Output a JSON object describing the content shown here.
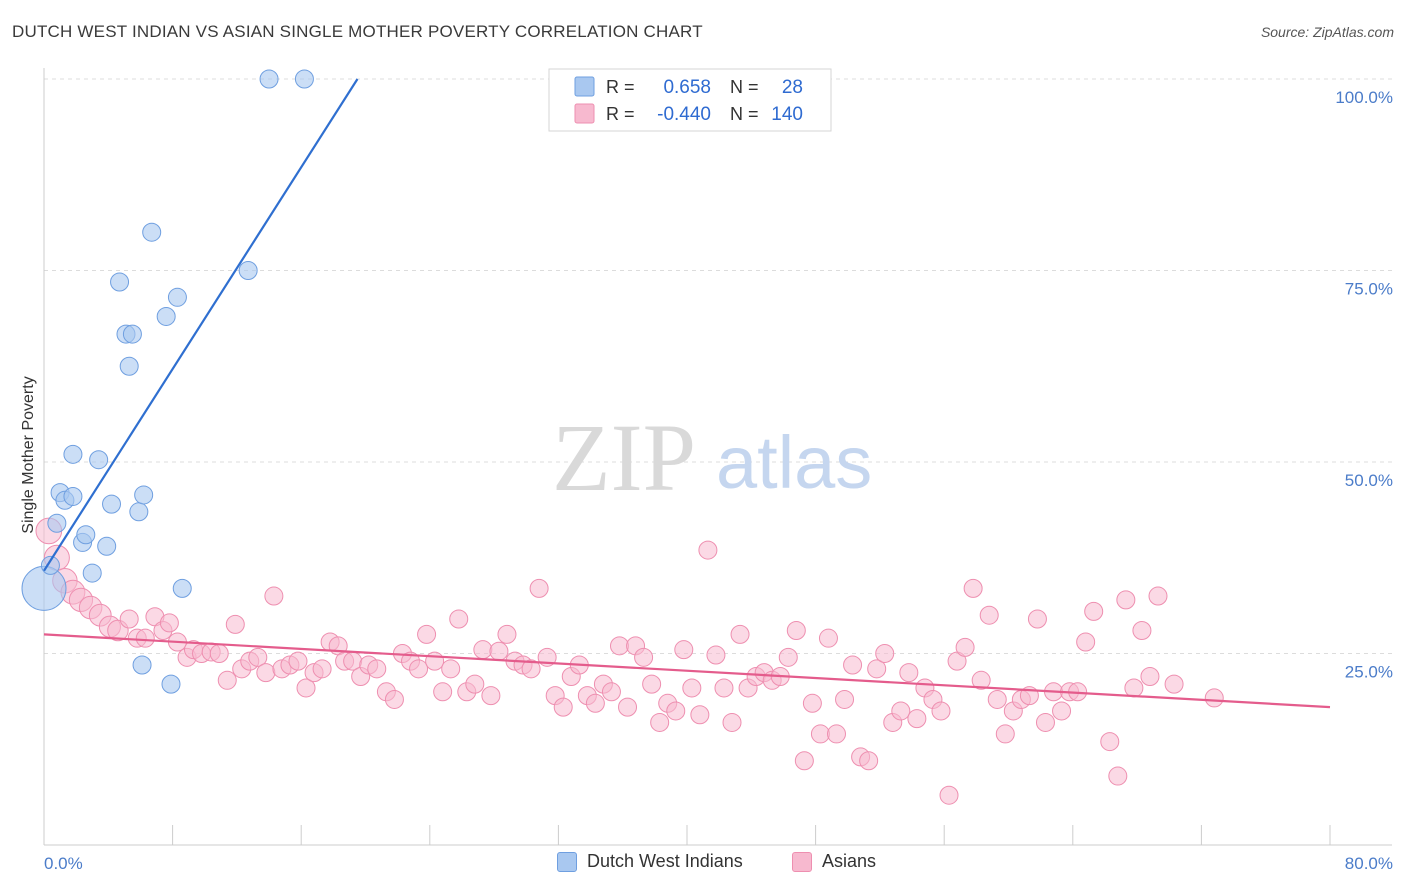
{
  "header": {
    "title": "DUTCH WEST INDIAN VS ASIAN SINGLE MOTHER POVERTY CORRELATION CHART",
    "source": "Source: ZipAtlas.com"
  },
  "watermark": {
    "zip": "ZIP",
    "atlas": "atlas"
  },
  "legend": {
    "rows": [
      {
        "r_label": "R = ",
        "r_value": "0.658",
        "n_label": "N = ",
        "n_value": "28",
        "color": "#a9c8f0",
        "stroke": "#6f9fe0"
      },
      {
        "r_label": "R = ",
        "r_value": "-0.440",
        "n_label": "N = ",
        "n_value": "140",
        "color": "#f7b9cf",
        "stroke": "#ee8fb0"
      }
    ]
  },
  "bottom_legend": {
    "items": [
      {
        "label": "Dutch West Indians",
        "color": "#a9c8f0",
        "stroke": "#6f9fe0"
      },
      {
        "label": "Asians",
        "color": "#f7b9cf",
        "stroke": "#ee8fb0"
      }
    ]
  },
  "chart_data": {
    "type": "scatter",
    "title": "DUTCH WEST INDIAN VS ASIAN SINGLE MOTHER POVERTY CORRELATION CHART",
    "xlabel": "",
    "ylabel": "Single Mother Poverty",
    "xlim": [
      0,
      80
    ],
    "ylim": [
      0,
      100
    ],
    "x_ticks": [
      0,
      80
    ],
    "x_tick_labels": [
      "0.0%",
      "80.0%"
    ],
    "y_ticks": [
      25,
      50,
      75,
      100
    ],
    "y_tick_labels": [
      "25.0%",
      "50.0%",
      "75.0%",
      "100.0%"
    ],
    "grid": "horizontal dashed",
    "legend_position": "top-center",
    "series": [
      {
        "name": "Dutch West Indians",
        "color": "#a9c8f0",
        "stroke": "#6f9fe0",
        "line_color": "#2f6fd0",
        "trend": {
          "x": [
            0,
            19.5
          ],
          "y": [
            35.8,
            100
          ]
        },
        "points": [
          [
            0,
            33.5
          ],
          [
            0.4,
            36.5
          ],
          [
            0.8,
            42
          ],
          [
            1,
            46
          ],
          [
            1.3,
            45
          ],
          [
            1.8,
            45.5
          ],
          [
            1.8,
            51
          ],
          [
            2.4,
            39.5
          ],
          [
            2.6,
            40.5
          ],
          [
            3,
            35.5
          ],
          [
            3.4,
            50.3
          ],
          [
            3.9,
            39
          ],
          [
            4.2,
            44.5
          ],
          [
            4.7,
            73.5
          ],
          [
            5.1,
            66.7
          ],
          [
            5.3,
            62.5
          ],
          [
            5.5,
            66.7
          ],
          [
            5.9,
            43.5
          ],
          [
            6.1,
            23.5
          ],
          [
            6.2,
            45.7
          ],
          [
            6.7,
            80
          ],
          [
            7.6,
            69
          ],
          [
            7.9,
            21
          ],
          [
            8.3,
            71.5
          ],
          [
            8.6,
            33.5
          ],
          [
            12.7,
            75
          ],
          [
            14,
            100
          ],
          [
            16.2,
            100
          ]
        ],
        "sizes": [
          22,
          9,
          9,
          9,
          9,
          9,
          9,
          9,
          9,
          9,
          9,
          9,
          9,
          9,
          9,
          9,
          9,
          9,
          9,
          9,
          9,
          9,
          9,
          9,
          9,
          9,
          9,
          9
        ]
      },
      {
        "name": "Asians",
        "color": "#f7b9cf",
        "stroke": "#ee8fb0",
        "line_color": "#e45c8c",
        "trend": {
          "x": [
            0,
            80
          ],
          "y": [
            27.5,
            18
          ]
        },
        "points": [
          [
            0.3,
            41
          ],
          [
            0.8,
            37.5
          ],
          [
            1.3,
            34.5
          ],
          [
            1.8,
            33
          ],
          [
            2.3,
            32
          ],
          [
            2.9,
            31
          ],
          [
            3.5,
            30
          ],
          [
            4.1,
            28.5
          ],
          [
            4.6,
            28
          ],
          [
            5.3,
            29.5
          ],
          [
            5.8,
            27
          ],
          [
            6.3,
            27
          ],
          [
            6.9,
            29.8
          ],
          [
            7.4,
            28
          ],
          [
            7.8,
            29
          ],
          [
            8.3,
            26.5
          ],
          [
            8.9,
            24.5
          ],
          [
            9.3,
            25.5
          ],
          [
            9.8,
            25
          ],
          [
            10.4,
            25.2
          ],
          [
            10.9,
            25
          ],
          [
            11.4,
            21.5
          ],
          [
            11.9,
            28.8
          ],
          [
            12.3,
            23
          ],
          [
            12.8,
            24
          ],
          [
            13.3,
            24.5
          ],
          [
            13.8,
            22.5
          ],
          [
            14.3,
            32.5
          ],
          [
            14.8,
            23
          ],
          [
            15.3,
            23.5
          ],
          [
            15.8,
            24
          ],
          [
            16.3,
            20.5
          ],
          [
            16.8,
            22.5
          ],
          [
            17.3,
            23
          ],
          [
            17.8,
            26.5
          ],
          [
            18.3,
            26
          ],
          [
            18.7,
            24
          ],
          [
            19.2,
            24
          ],
          [
            19.7,
            22
          ],
          [
            20.2,
            23.5
          ],
          [
            20.7,
            23
          ],
          [
            21.3,
            20
          ],
          [
            21.8,
            19
          ],
          [
            22.3,
            25
          ],
          [
            22.8,
            24
          ],
          [
            23.3,
            23
          ],
          [
            23.8,
            27.5
          ],
          [
            24.3,
            24
          ],
          [
            24.8,
            20
          ],
          [
            25.3,
            23
          ],
          [
            25.8,
            29.5
          ],
          [
            26.3,
            20
          ],
          [
            26.8,
            21
          ],
          [
            27.3,
            25.5
          ],
          [
            27.8,
            19.5
          ],
          [
            28.3,
            25.3
          ],
          [
            28.8,
            27.5
          ],
          [
            29.3,
            24
          ],
          [
            29.8,
            23.5
          ],
          [
            30.3,
            23
          ],
          [
            30.8,
            33.5
          ],
          [
            31.3,
            24.5
          ],
          [
            31.8,
            19.5
          ],
          [
            32.3,
            18
          ],
          [
            32.8,
            22
          ],
          [
            33.3,
            23.5
          ],
          [
            33.8,
            19.5
          ],
          [
            34.3,
            18.5
          ],
          [
            34.8,
            21
          ],
          [
            35.3,
            20
          ],
          [
            35.8,
            26
          ],
          [
            36.3,
            18
          ],
          [
            36.8,
            26
          ],
          [
            37.3,
            24.5
          ],
          [
            37.8,
            21
          ],
          [
            38.3,
            16
          ],
          [
            38.8,
            18.5
          ],
          [
            39.3,
            17.5
          ],
          [
            39.8,
            25.5
          ],
          [
            40.3,
            20.5
          ],
          [
            40.8,
            17
          ],
          [
            41.3,
            38.5
          ],
          [
            41.8,
            24.8
          ],
          [
            42.3,
            20.5
          ],
          [
            42.8,
            16
          ],
          [
            43.3,
            27.5
          ],
          [
            43.8,
            20.5
          ],
          [
            44.3,
            22
          ],
          [
            44.8,
            22.5
          ],
          [
            45.3,
            21.5
          ],
          [
            45.8,
            22
          ],
          [
            46.3,
            24.5
          ],
          [
            46.8,
            28
          ],
          [
            47.3,
            11
          ],
          [
            47.8,
            18.5
          ],
          [
            48.3,
            14.5
          ],
          [
            48.8,
            27
          ],
          [
            49.3,
            14.5
          ],
          [
            49.8,
            19
          ],
          [
            50.3,
            23.5
          ],
          [
            50.8,
            11.5
          ],
          [
            51.3,
            11
          ],
          [
            51.8,
            23
          ],
          [
            52.3,
            25
          ],
          [
            52.8,
            16
          ],
          [
            53.3,
            17.5
          ],
          [
            53.8,
            22.5
          ],
          [
            54.3,
            16.5
          ],
          [
            54.8,
            20.5
          ],
          [
            55.3,
            19
          ],
          [
            55.8,
            17.5
          ],
          [
            56.3,
            6.5
          ],
          [
            56.8,
            24
          ],
          [
            57.3,
            25.8
          ],
          [
            57.8,
            33.5
          ],
          [
            58.3,
            21.5
          ],
          [
            58.8,
            30
          ],
          [
            59.3,
            19
          ],
          [
            59.8,
            14.5
          ],
          [
            60.3,
            17.5
          ],
          [
            60.8,
            19
          ],
          [
            61.3,
            19.5
          ],
          [
            61.8,
            29.5
          ],
          [
            62.3,
            16
          ],
          [
            62.8,
            20
          ],
          [
            63.3,
            17.5
          ],
          [
            63.8,
            20
          ],
          [
            64.3,
            20
          ],
          [
            64.8,
            26.5
          ],
          [
            65.3,
            30.5
          ],
          [
            66.3,
            13.5
          ],
          [
            66.8,
            9
          ],
          [
            67.3,
            32
          ],
          [
            67.8,
            20.5
          ],
          [
            68.3,
            28
          ],
          [
            68.8,
            22
          ],
          [
            69.3,
            32.5
          ],
          [
            70.3,
            21
          ],
          [
            72.8,
            19.2
          ]
        ]
      }
    ]
  }
}
